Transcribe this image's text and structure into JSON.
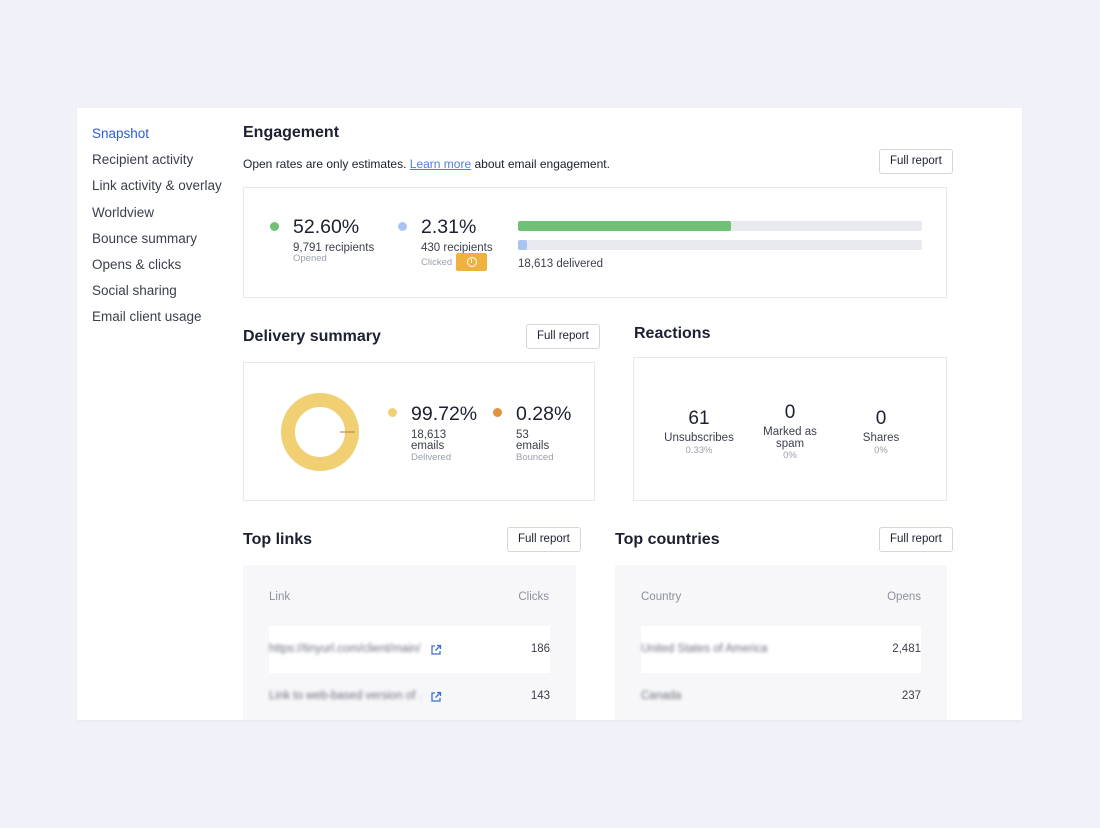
{
  "sidebar": {
    "items": [
      {
        "label": "Snapshot",
        "active": true
      },
      {
        "label": "Recipient activity"
      },
      {
        "label": "Link activity & overlay"
      },
      {
        "label": "Worldview"
      },
      {
        "label": "Bounce summary"
      },
      {
        "label": "Opens & clicks"
      },
      {
        "label": "Social sharing"
      },
      {
        "label": "Email client usage"
      }
    ]
  },
  "engagement": {
    "title": "Engagement",
    "subtitle_pre": "Open rates are only estimates.",
    "subtitle_link": "Learn more",
    "subtitle_post": "about email engagement.",
    "full_report": "Full report",
    "opened": {
      "pct": "52.60%",
      "count": "9,791 recipients",
      "label": "Opened",
      "fraction": 0.526
    },
    "clicked": {
      "pct": "2.31%",
      "count": "430 recipients",
      "label": "Clicked",
      "fraction": 0.0231
    },
    "delivered": "18,613 delivered",
    "info_icon": "info-icon"
  },
  "delivery": {
    "title": "Delivery summary",
    "full_report": "Full report",
    "delivered": {
      "pct": "99.72%",
      "count": "18,613",
      "unit": "emails",
      "label": "Delivered",
      "fraction": 0.9972
    },
    "bounced": {
      "pct": "0.28%",
      "count": "53",
      "unit": "emails",
      "label": "Bounced",
      "fraction": 0.0028
    }
  },
  "reactions": {
    "title": "Reactions",
    "items": [
      {
        "value": "61",
        "label": "Unsubscribes",
        "pct": "0.33%"
      },
      {
        "value": "0",
        "label_line1": "Marked as",
        "label_line2": "spam",
        "pct": "0%"
      },
      {
        "value": "0",
        "label": "Shares",
        "pct": "0%"
      }
    ]
  },
  "top_links": {
    "title": "Top links",
    "full_report": "Full report",
    "col_link": "Link",
    "col_clicks": "Clicks",
    "rows": [
      {
        "link": "https://tinyurl.com/client/main/…",
        "clicks": "186"
      },
      {
        "link": "Link to web-based version of …",
        "clicks": "143"
      }
    ]
  },
  "top_countries": {
    "title": "Top countries",
    "full_report": "Full report",
    "col_country": "Country",
    "col_opens": "Opens",
    "rows": [
      {
        "country": "United States of America",
        "opens": "2,481"
      },
      {
        "country": "Canada",
        "opens": "237"
      }
    ]
  },
  "colors": {
    "accent": "#2a5bd7",
    "opened": "#6fc176",
    "clicked": "#a9c4f0",
    "delivered": "#f1cf73",
    "bounced": "#e1923d",
    "info_badge": "#f0b23f"
  }
}
